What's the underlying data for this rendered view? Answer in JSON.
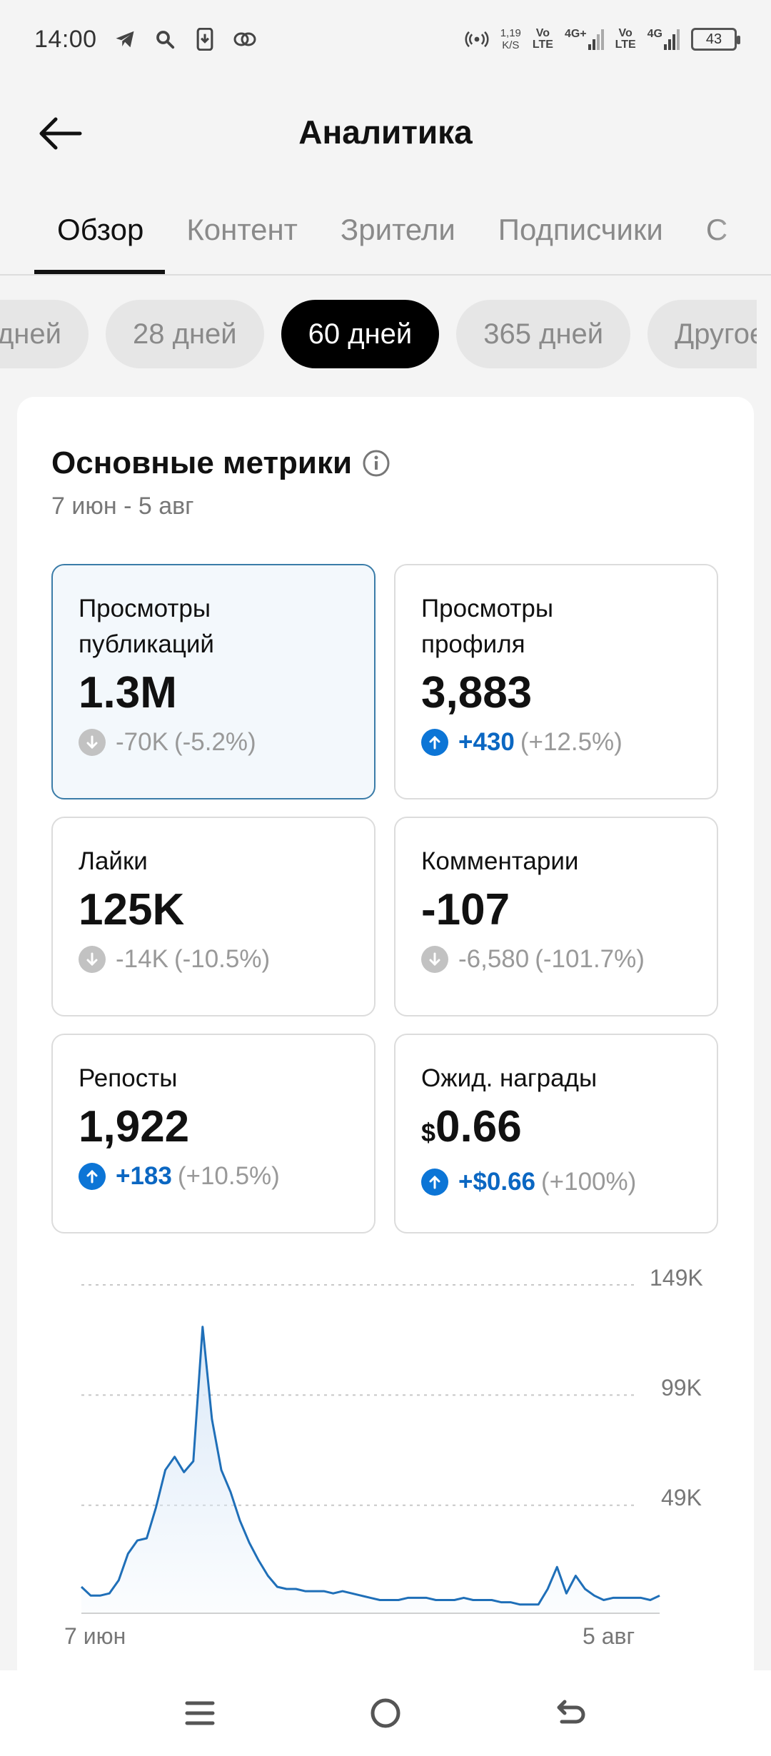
{
  "status_bar": {
    "time": "14:00",
    "net_speed_value": "1,19",
    "net_speed_unit": "K/S",
    "sim1_volte": "Vo",
    "sim1_lte": "LTE",
    "sim1_type": "4G+",
    "sim2_volte": "Vo",
    "sim2_lte": "LTE",
    "sim2_type": "4G",
    "battery": "43"
  },
  "header": {
    "title": "Аналитика"
  },
  "tabs": [
    {
      "label": "Обзор",
      "active": true
    },
    {
      "label": "Контент"
    },
    {
      "label": "Зрители"
    },
    {
      "label": "Подписчики"
    },
    {
      "label": "С"
    }
  ],
  "periods": [
    {
      "label": "дней"
    },
    {
      "label": "28 дней"
    },
    {
      "label": "60 дней",
      "active": true
    },
    {
      "label": "365 дней"
    },
    {
      "label": "Другое"
    }
  ],
  "metrics": {
    "title": "Основные метрики",
    "range": "7 июн - 5 авг",
    "items": [
      {
        "label": "Просмотры публикаций",
        "value": "1.3M",
        "delta": "-70K",
        "pct": "(-5.2%)",
        "dir": "down"
      },
      {
        "label": "Просмотры профиля",
        "value": "3,883",
        "delta": "+430",
        "pct": "(+12.5%)",
        "dir": "up"
      },
      {
        "label": "Лайки",
        "value": "125K",
        "delta": "-14K",
        "pct": "(-10.5%)",
        "dir": "down"
      },
      {
        "label": "Комментарии",
        "value": "-107",
        "delta": "-6,580",
        "pct": "(-101.7%)",
        "dir": "down"
      },
      {
        "label": "Репосты",
        "value": "1,922",
        "delta": "+183",
        "pct": "(+10.5%)",
        "dir": "up"
      },
      {
        "label": "Ожид. награды",
        "value_currency": "$",
        "value": "0.66",
        "delta": "+$0.66",
        "pct": "(+100%)",
        "dir": "up"
      }
    ]
  },
  "chart_data": {
    "type": "area",
    "series": [
      {
        "values": [
          12,
          8,
          8,
          9,
          15,
          27,
          33,
          34,
          48,
          65,
          71,
          64,
          69,
          130,
          88,
          65,
          55,
          42,
          32,
          24,
          17,
          12,
          11,
          11,
          10,
          10,
          10,
          9,
          10,
          9,
          8,
          7,
          6,
          6,
          6,
          7,
          7,
          7,
          6,
          6,
          6,
          7,
          6,
          6,
          6,
          5,
          5,
          4,
          4,
          4,
          11,
          21,
          9,
          17,
          11,
          8,
          6,
          7,
          7,
          7,
          7,
          6,
          8
        ]
      }
    ],
    "x_start": "7 июн",
    "x_end": "5 авг",
    "y_ticks": [
      "149K",
      "99K",
      "49K"
    ],
    "y_tick_values": [
      149,
      99,
      49
    ],
    "ylim": [
      0,
      149
    ],
    "y_unit": "K",
    "grid": true,
    "colors": {
      "line": "#1f6fb8",
      "fill": "#dbe9f8"
    }
  },
  "nav": {
    "menu_icon": "menu-icon",
    "home_icon": "home-circle-icon",
    "back_icon": "back-icon"
  }
}
